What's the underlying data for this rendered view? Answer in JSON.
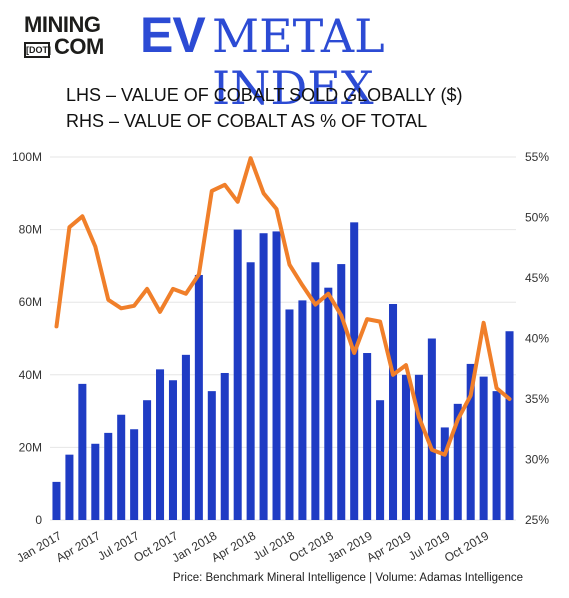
{
  "header": {
    "logo_line1": "MINING",
    "logo_dot": "[DOT]",
    "logo_line2": "COM",
    "title_ev": "EV",
    "title_rest": "METAL INDEX"
  },
  "subtitle_lhs": "LHS – VALUE OF COBALT SOLD GLOBALLY ($)",
  "subtitle_rhs": "RHS – VALUE OF COBALT AS % OF TOTAL",
  "source": "Price: Benchmark Mineral Intelligence | Volume: Adamas Intelligence",
  "colors": {
    "bar": "#1f3cc4",
    "line": "#f07f2a",
    "grid": "#e6e6e6",
    "title": "#2c4bd4"
  },
  "chart_data": {
    "type": "bar+line",
    "categories": [
      "Jan 2017",
      "Feb 2017",
      "Mar 2017",
      "Apr 2017",
      "May 2017",
      "Jun 2017",
      "Jul 2017",
      "Aug 2017",
      "Sep 2017",
      "Oct 2017",
      "Nov 2017",
      "Dec 2017",
      "Jan 2018",
      "Feb 2018",
      "Mar 2018",
      "Apr 2018",
      "May 2018",
      "Jun 2018",
      "Jul 2018",
      "Aug 2018",
      "Sep 2018",
      "Oct 2018",
      "Nov 2018",
      "Dec 2018",
      "Jan 2019",
      "Feb 2019",
      "Mar 2019",
      "Apr 2019",
      "May 2019",
      "Jun 2019",
      "Jul 2019",
      "Aug 2019",
      "Sep 2019",
      "Oct 2019",
      "Nov 2019",
      "Dec 2019"
    ],
    "x_tick_labels": [
      "Jan 2017",
      "Apr 2017",
      "Jul 2017",
      "Oct 2017",
      "Jan 2018",
      "Apr 2018",
      "Jul 2018",
      "Oct 2018",
      "Jan 2019",
      "Apr 2019",
      "Jul 2019",
      "Oct 2019"
    ],
    "series": [
      {
        "axis": "left",
        "type": "bar",
        "values": [
          10.5,
          18,
          37.5,
          21,
          24,
          29,
          25,
          33,
          41.5,
          38.5,
          45.5,
          67.5,
          35.5,
          40.5,
          80,
          71,
          79,
          79.5,
          58,
          60.5,
          71,
          64,
          70.5,
          82,
          46,
          33,
          59.5,
          40,
          40,
          50,
          25.5,
          32,
          43,
          39.5,
          35.5,
          52
        ]
      },
      {
        "axis": "right",
        "type": "line",
        "values": [
          41,
          49.2,
          50.1,
          47.6,
          43.2,
          42.5,
          42.7,
          44.1,
          42.2,
          44.1,
          43.7,
          45.3,
          52.2,
          52.7,
          51.3,
          54.9,
          52,
          50.7,
          46.1,
          44.4,
          42.8,
          43.7,
          41.9,
          38.8,
          41.6,
          41.4,
          37,
          37.8,
          33.5,
          30.8,
          30.4,
          33.3,
          35.3,
          41.3,
          35.9,
          35
        ]
      }
    ],
    "y_left": {
      "lim": [
        0,
        100
      ],
      "ticks": [
        "0",
        "20M",
        "40M",
        "60M",
        "80M",
        "100M"
      ]
    },
    "y_right": {
      "lim": [
        25,
        55
      ],
      "ticks": [
        "25%",
        "30%",
        "35%",
        "40%",
        "45%",
        "50%",
        "55%"
      ]
    },
    "grid": true
  }
}
